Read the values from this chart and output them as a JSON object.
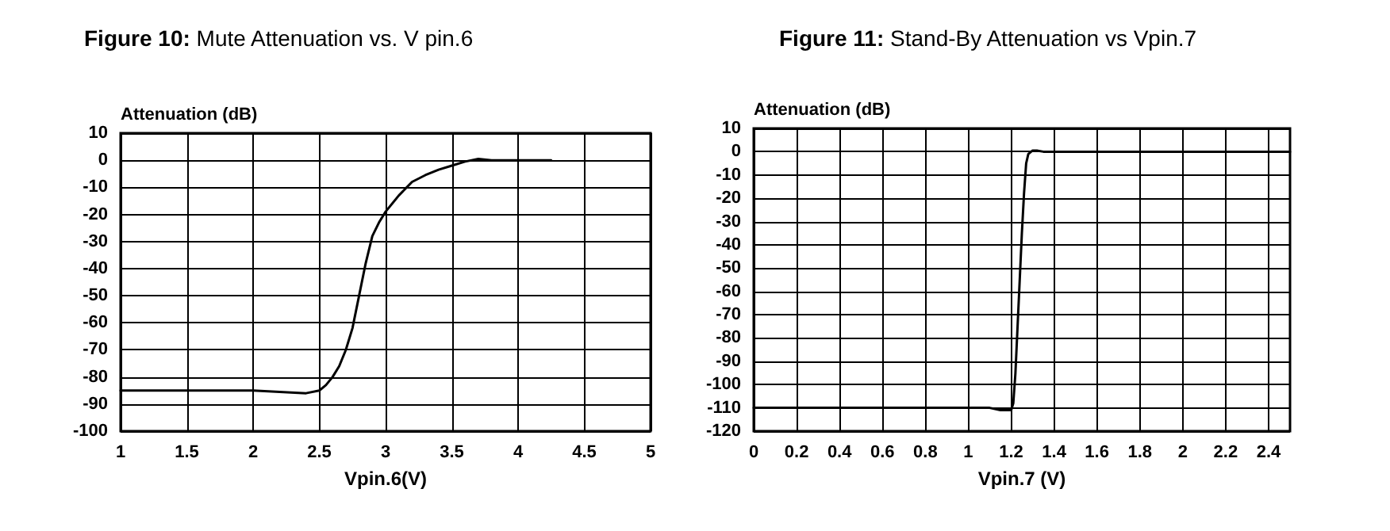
{
  "chart_data": [
    {
      "type": "line",
      "title": "Figure 10: Mute Attenuation vs. V pin.6",
      "xlabel": "Vpin.6(V)",
      "ylabel": "Attenuation (dB)",
      "x": [
        1,
        1.5,
        2,
        2.2,
        2.4,
        2.5,
        2.55,
        2.6,
        2.65,
        2.7,
        2.75,
        2.8,
        2.85,
        2.9,
        2.95,
        3,
        3.1,
        3.2,
        3.3,
        3.4,
        3.5,
        3.6,
        3.7,
        3.8,
        4,
        4.25
      ],
      "series": [
        {
          "color": "#000000",
          "values": [
            -85,
            -85,
            -85,
            -85.5,
            -86,
            -85,
            -83,
            -80,
            -76,
            -70,
            -62,
            -50,
            -38,
            -28,
            -23,
            -19,
            -13,
            -8,
            -5.5,
            -3.5,
            -2,
            -0.5,
            0.5,
            0,
            0,
            0
          ]
        }
      ],
      "xlim": [
        1,
        5
      ],
      "xticks": [
        1,
        1.5,
        2,
        2.5,
        3,
        3.5,
        4,
        4.5,
        5
      ],
      "ylim": [
        -100,
        10
      ],
      "yticks": [
        -100,
        -90,
        -80,
        -70,
        -60,
        -50,
        -40,
        -30,
        -20,
        -10,
        0,
        10
      ],
      "grid": true,
      "marker": "none",
      "line_style": "solid"
    },
    {
      "type": "line",
      "title": "Figure 11: Stand-By Attenuation vs Vpin.7",
      "xlabel": "Vpin.7 (V)",
      "ylabel": "Attenuation (dB)",
      "x": [
        0,
        0.5,
        1,
        1.1,
        1.15,
        1.2,
        1.21,
        1.22,
        1.23,
        1.24,
        1.25,
        1.26,
        1.27,
        1.28,
        1.3,
        1.32,
        1.35,
        1.5,
        2,
        2.5
      ],
      "series": [
        {
          "color": "#000000",
          "values": [
            -110,
            -110,
            -110,
            -110,
            -111,
            -111,
            -108,
            -95,
            -75,
            -55,
            -35,
            -18,
            -5,
            -1,
            0.5,
            0.5,
            0,
            0,
            0,
            0
          ]
        }
      ],
      "xlim": [
        0,
        2.5
      ],
      "xticks": [
        0,
        0.2,
        0.4,
        0.6,
        0.8,
        1,
        1.2,
        1.4,
        1.6,
        1.8,
        2,
        2.2,
        2.4
      ],
      "ylim": [
        -120,
        10
      ],
      "yticks": [
        -120,
        -110,
        -100,
        -90,
        -80,
        -70,
        -60,
        -50,
        -40,
        -30,
        -20,
        -10,
        0,
        10
      ],
      "grid": true,
      "marker": "none",
      "line_style": "solid"
    }
  ]
}
